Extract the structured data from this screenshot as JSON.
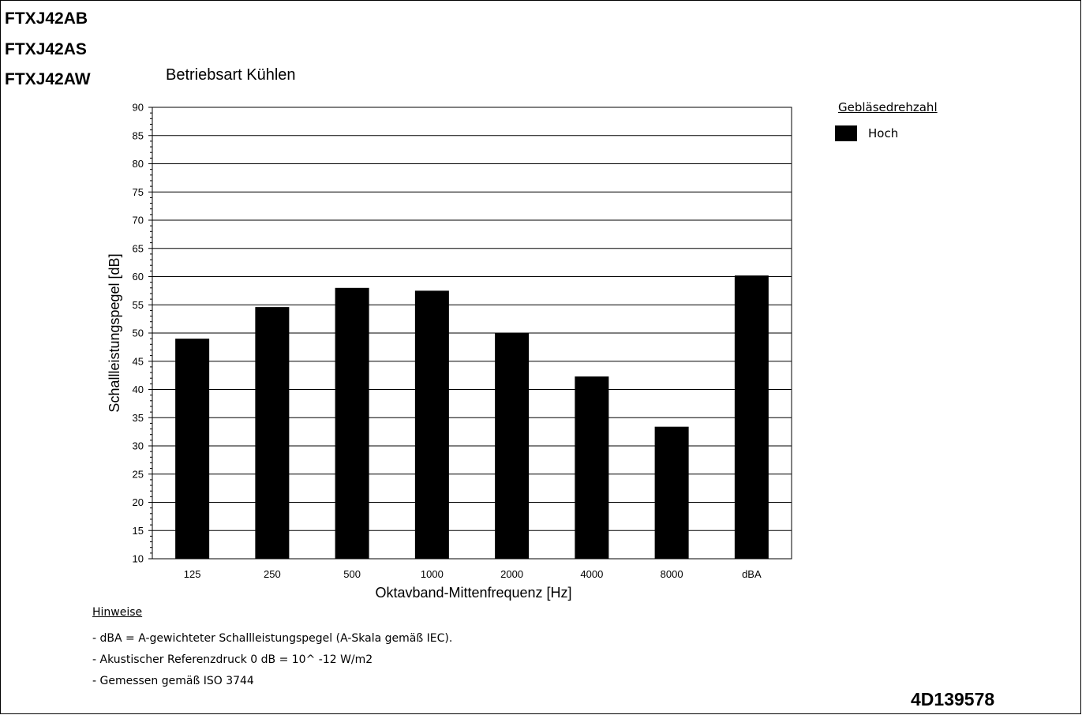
{
  "models": [
    "FTXJ42AB",
    "FTXJ42AS",
    "FTXJ42AW"
  ],
  "legend": {
    "title": "Gebläsedrehzahl",
    "label": "Hoch"
  },
  "notes": {
    "title": "Hinweise",
    "items": [
      "- dBA = A-gewichteter Schallleistungspegel (A-Skala gemäß IEC).",
      "- Akustischer Referenzdruck 0 dB = 10^ -12 W/m2",
      "- Gemessen gemäß ISO 3744"
    ]
  },
  "doc_id": "4D139578",
  "colors": {
    "bar": "#000000",
    "grid": "#000000",
    "background": "#ffffff"
  },
  "chart_data": {
    "type": "bar",
    "title": "Betriebsart Kühlen",
    "xlabel": "Oktavband-Mittenfrequenz [Hz]",
    "ylabel": "Schallleistungspegel [dB]",
    "categories": [
      "125",
      "250",
      "500",
      "1000",
      "2000",
      "4000",
      "8000",
      "dBA"
    ],
    "series": [
      {
        "name": "Hoch",
        "values": [
          49,
          54.6,
          58,
          57.5,
          50,
          42.3,
          33.4,
          60.2
        ]
      }
    ],
    "ylim": [
      10,
      90
    ],
    "yticks": [
      10,
      15,
      20,
      25,
      30,
      35,
      40,
      45,
      50,
      55,
      60,
      65,
      70,
      75,
      80,
      85,
      90
    ],
    "grid": true,
    "legend_position": "right"
  }
}
